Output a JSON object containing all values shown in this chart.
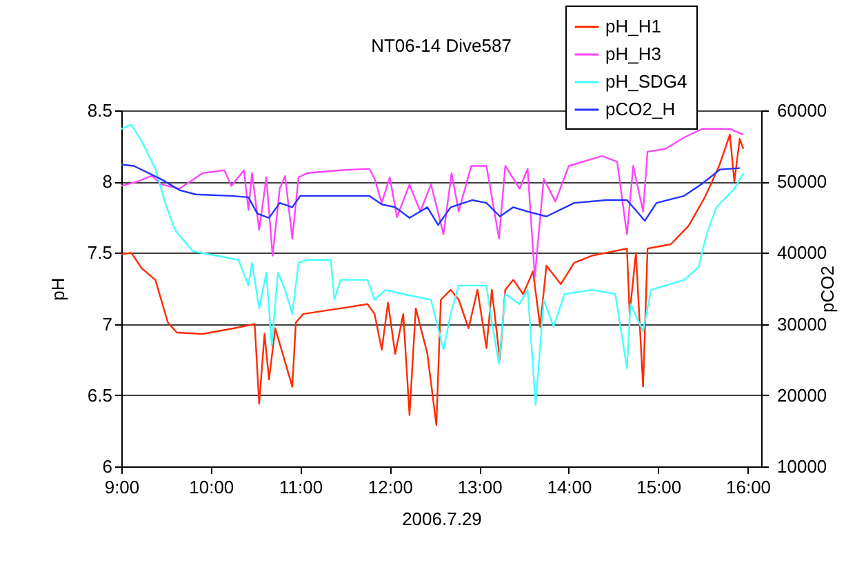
{
  "chart_data": {
    "type": "line",
    "title": "NT06-14 Dive587",
    "xlabel": "2006.7.29",
    "ylabel": "pH",
    "y2label": "pCO2",
    "xlim": [
      9,
      16.15
    ],
    "xticks": [
      {
        "value": 9,
        "label": "9:00"
      },
      {
        "value": 10,
        "label": "10:00"
      },
      {
        "value": 11,
        "label": "11:00"
      },
      {
        "value": 12,
        "label": "12:00"
      },
      {
        "value": 13,
        "label": "13:00"
      },
      {
        "value": 14,
        "label": "14:00"
      },
      {
        "value": 15,
        "label": "15:00"
      },
      {
        "value": 16,
        "label": "16:00"
      }
    ],
    "ylim": [
      6,
      8.5
    ],
    "yticks": [
      6,
      6.5,
      7,
      7.5,
      8,
      8.5
    ],
    "y2lim": [
      10000,
      60000
    ],
    "y2ticks": [
      10000,
      20000,
      30000,
      40000,
      50000,
      60000
    ],
    "grid": "y",
    "legend": "top right",
    "marker": "none",
    "line_style": "solid",
    "series": [
      {
        "name": "pH_H1",
        "color": "#ff2a00",
        "x": [
          9.0,
          9.11,
          9.23,
          9.38,
          9.52,
          9.62,
          9.91,
          10.26,
          10.49,
          10.54,
          10.6,
          10.65,
          10.72,
          10.91,
          10.95,
          11.03,
          11.45,
          11.75,
          11.83,
          11.91,
          11.98,
          12.06,
          12.15,
          12.22,
          12.29,
          12.42,
          12.52,
          12.57,
          12.68,
          12.77,
          12.88,
          12.98,
          13.08,
          13.14,
          13.23,
          13.29,
          13.38,
          13.49,
          13.6,
          13.68,
          13.75,
          13.91,
          14.06,
          14.26,
          14.42,
          14.65,
          14.68,
          14.75,
          14.83,
          14.88,
          15.14,
          15.34,
          15.52,
          15.68,
          15.8,
          15.85,
          15.91,
          15.95
        ],
        "values": [
          7.49,
          7.5,
          7.39,
          7.31,
          7.01,
          6.94,
          6.93,
          6.97,
          7.0,
          6.44,
          6.93,
          6.61,
          6.97,
          6.56,
          7.01,
          7.07,
          7.11,
          7.14,
          7.07,
          6.82,
          7.15,
          6.79,
          7.07,
          6.36,
          7.11,
          6.79,
          6.29,
          7.17,
          7.24,
          7.17,
          6.97,
          7.24,
          6.83,
          7.24,
          6.75,
          7.24,
          7.31,
          7.21,
          7.37,
          6.98,
          7.41,
          7.28,
          7.43,
          7.48,
          7.5,
          7.53,
          7.07,
          7.5,
          6.56,
          7.53,
          7.56,
          7.69,
          7.89,
          8.11,
          8.33,
          8.0,
          8.3,
          8.23
        ]
      },
      {
        "name": "pH_H3",
        "color": "#ff44ff",
        "x": [
          9.0,
          9.18,
          9.34,
          9.45,
          9.65,
          9.91,
          10.15,
          10.23,
          10.37,
          10.42,
          10.46,
          10.54,
          10.62,
          10.69,
          10.77,
          10.83,
          10.91,
          10.98,
          11.08,
          11.45,
          11.77,
          11.83,
          11.91,
          12.0,
          12.08,
          12.22,
          12.34,
          12.46,
          12.6,
          12.69,
          12.77,
          12.91,
          13.08,
          13.22,
          13.29,
          13.45,
          13.54,
          13.62,
          13.72,
          13.85,
          14.0,
          14.37,
          14.54,
          14.65,
          14.72,
          14.83,
          14.88,
          15.08,
          15.29,
          15.49,
          15.8,
          15.95
        ],
        "values": [
          7.97,
          8.0,
          8.04,
          7.98,
          7.95,
          8.06,
          8.08,
          7.97,
          8.08,
          7.8,
          8.06,
          7.66,
          8.03,
          7.48,
          7.95,
          8.04,
          7.6,
          8.03,
          8.06,
          8.08,
          8.09,
          8.02,
          7.85,
          8.03,
          7.75,
          7.98,
          7.79,
          7.98,
          7.63,
          8.06,
          7.79,
          8.11,
          8.11,
          7.6,
          8.11,
          7.95,
          8.09,
          7.33,
          8.02,
          7.86,
          8.11,
          8.18,
          8.14,
          7.63,
          8.11,
          7.79,
          8.21,
          8.23,
          8.31,
          8.37,
          8.37,
          8.33
        ]
      },
      {
        "name": "pH_SDG4",
        "color": "#44ffff",
        "x": [
          9.0,
          9.11,
          9.23,
          9.38,
          9.49,
          9.6,
          9.8,
          10.06,
          10.31,
          10.42,
          10.46,
          10.54,
          10.62,
          10.68,
          10.75,
          10.83,
          10.91,
          10.98,
          11.08,
          11.34,
          11.38,
          11.45,
          11.75,
          11.83,
          11.95,
          12.15,
          12.46,
          12.6,
          12.68,
          12.77,
          13.08,
          13.14,
          13.22,
          13.29,
          13.45,
          13.54,
          13.63,
          13.72,
          13.83,
          13.95,
          14.26,
          14.52,
          14.65,
          14.69,
          14.83,
          14.92,
          15.29,
          15.45,
          15.54,
          15.65,
          15.85,
          15.95
        ],
        "values": [
          8.37,
          8.4,
          8.28,
          8.09,
          7.85,
          7.66,
          7.51,
          7.48,
          7.45,
          7.27,
          7.43,
          7.11,
          7.36,
          6.85,
          7.36,
          7.24,
          7.07,
          7.43,
          7.45,
          7.45,
          7.17,
          7.31,
          7.31,
          7.17,
          7.24,
          7.21,
          7.17,
          6.82,
          7.07,
          7.27,
          7.27,
          7.01,
          6.72,
          7.21,
          7.14,
          7.24,
          6.43,
          7.17,
          6.98,
          7.21,
          7.24,
          7.21,
          6.69,
          7.14,
          6.95,
          7.24,
          7.31,
          7.4,
          7.63,
          7.82,
          7.95,
          8.06
        ]
      },
      {
        "name": "pCO2_H",
        "color": "#2233ff",
        "axis": "y2",
        "x": [
          9.0,
          9.14,
          9.45,
          9.65,
          9.83,
          10.22,
          10.42,
          10.52,
          10.65,
          10.77,
          10.91,
          11.0,
          11.77,
          11.91,
          12.06,
          12.22,
          12.42,
          12.54,
          12.68,
          12.92,
          13.08,
          13.23,
          13.38,
          13.54,
          13.75,
          14.06,
          14.42,
          14.65,
          14.85,
          14.98,
          15.29,
          15.49,
          15.69,
          15.91
        ],
        "values": [
          52400,
          52200,
          50300,
          48800,
          48200,
          48000,
          47800,
          45500,
          44900,
          47000,
          46400,
          48000,
          48000,
          46800,
          46400,
          44900,
          46400,
          43900,
          46400,
          47400,
          47000,
          45100,
          46400,
          45800,
          45100,
          47000,
          47400,
          47400,
          44500,
          47000,
          48000,
          49700,
          51700,
          51900
        ]
      }
    ]
  }
}
